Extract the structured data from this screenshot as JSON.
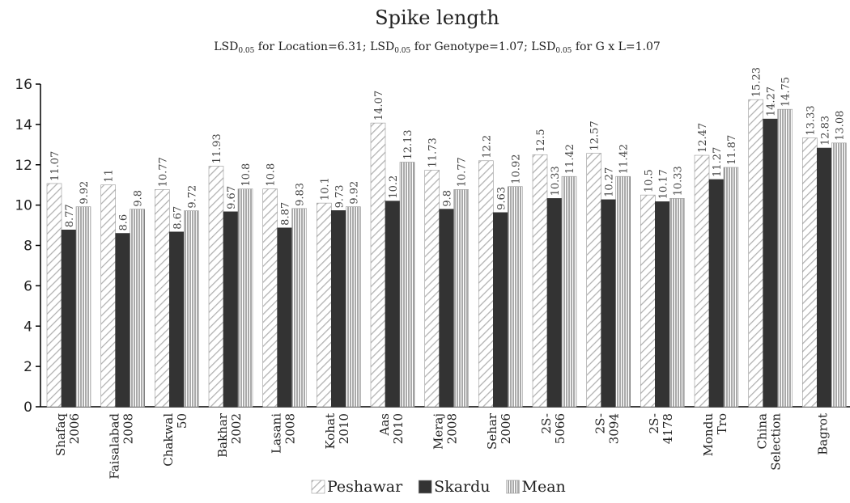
{
  "chart_data": {
    "type": "bar",
    "title": "Spike length",
    "subtitle": [
      "LSD",
      "0.05",
      " for Location=6.31; LSD",
      "0.05",
      " for Genotype=1.07; LSD",
      "0.05",
      " for G x L=1.07"
    ],
    "categories": [
      [
        "Shafaq",
        "2006"
      ],
      [
        "Faisalabad",
        "2008"
      ],
      [
        "Chakwal",
        "50"
      ],
      [
        "Bakhar",
        "2002"
      ],
      [
        "Lasani",
        "2008"
      ],
      [
        "Kohat",
        "2010"
      ],
      [
        "Aas",
        "2010"
      ],
      [
        "Meraj",
        "2008"
      ],
      [
        "Sehar",
        "2006"
      ],
      [
        "2S-",
        "5066"
      ],
      [
        "2S-",
        "3094"
      ],
      [
        "2S-",
        "4178"
      ],
      [
        "Mondu",
        "Tro"
      ],
      [
        "China",
        "Selection"
      ],
      [
        "Bagrot"
      ]
    ],
    "series": [
      {
        "name": "Peshawar",
        "color": "#b0b0b0",
        "pattern": "diagonal",
        "values": [
          11.07,
          11,
          10.77,
          11.93,
          10.8,
          10.1,
          14.07,
          11.73,
          12.2,
          12.5,
          12.57,
          10.5,
          12.47,
          15.23,
          13.33
        ]
      },
      {
        "name": "Skardu",
        "color": "#333333",
        "pattern": "solid",
        "values": [
          8.77,
          8.6,
          8.67,
          9.67,
          8.87,
          9.73,
          10.2,
          9.8,
          9.63,
          10.33,
          10.27,
          10.17,
          11.27,
          14.27,
          12.83
        ]
      },
      {
        "name": "Mean",
        "color": "#555555",
        "pattern": "vertical",
        "values": [
          9.92,
          9.8,
          9.72,
          10.8,
          9.83,
          9.92,
          12.13,
          10.77,
          10.92,
          11.42,
          11.42,
          10.33,
          11.87,
          14.75,
          13.08
        ]
      }
    ],
    "ylim": [
      0,
      16
    ],
    "yticks": [
      0,
      2,
      4,
      6,
      8,
      10,
      12,
      14,
      16
    ],
    "grid": false,
    "legend": "bottom"
  }
}
